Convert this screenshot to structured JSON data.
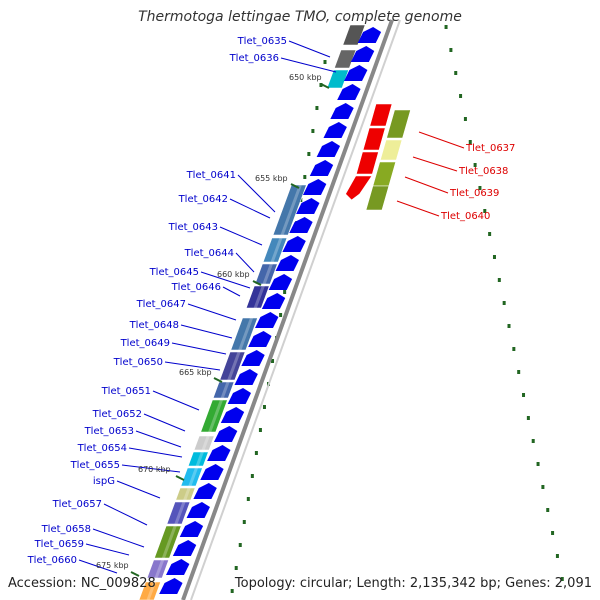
{
  "title": "Thermotoga lettingae TMO, complete genome",
  "footer": {
    "accession": "Accession: NC_009828",
    "summary": "Topology: circular; Length: 2,135,342 bp; Genes: 2,091"
  },
  "colors": {
    "forward_label": "#0000cc",
    "reverse_label": "#dd0000",
    "cds_arrow": "#0000ee",
    "backbone": "#888888",
    "tick": "#226622"
  },
  "kbp_marks": [
    "650 kbp",
    "655 kbp",
    "660 kbp",
    "665 kbp",
    "670 kbp",
    "675 kbp"
  ],
  "forward_genes": [
    "Tlet_0635",
    "Tlet_0636",
    "Tlet_0641",
    "Tlet_0642",
    "Tlet_0643",
    "Tlet_0644",
    "Tlet_0645",
    "Tlet_0646",
    "Tlet_0647",
    "Tlet_0648",
    "Tlet_0649",
    "Tlet_0650",
    "Tlet_0651",
    "Tlet_0652",
    "Tlet_0653",
    "Tlet_0654",
    "Tlet_0655",
    "ispG",
    "Tlet_0657",
    "Tlet_0658",
    "Tlet_0659",
    "Tlet_0660"
  ],
  "reverse_genes": [
    "Tlet_0637",
    "Tlet_0638",
    "Tlet_0639",
    "Tlet_0640"
  ]
}
